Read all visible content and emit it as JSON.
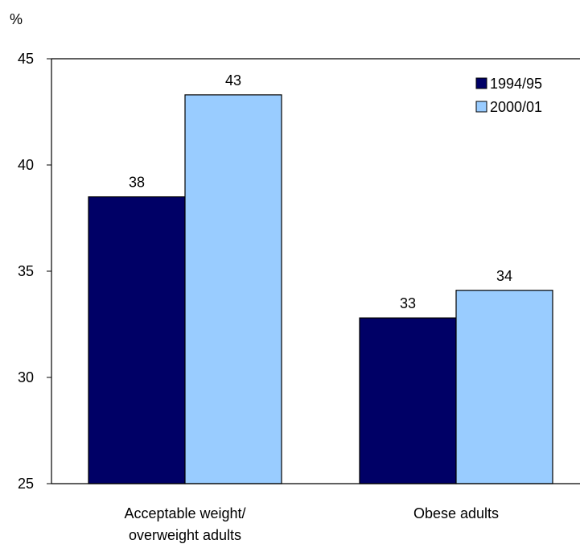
{
  "chart_data": {
    "type": "bar",
    "ylabel": "%",
    "ylim": [
      25,
      45
    ],
    "yticks": [
      25,
      30,
      35,
      40,
      45
    ],
    "categories": [
      [
        "Acceptable weight/",
        "overweight adults"
      ],
      [
        "Obese adults"
      ]
    ],
    "series": [
      {
        "name": "1994/95",
        "color": "#000066",
        "values": [
          38.5,
          32.8
        ],
        "labels": [
          "38",
          "33"
        ]
      },
      {
        "name": "2000/01",
        "color": "#99ccff",
        "values": [
          43.3,
          34.1
        ],
        "labels": [
          "43",
          "34"
        ]
      }
    ],
    "legend": "top-right",
    "grid": false
  }
}
